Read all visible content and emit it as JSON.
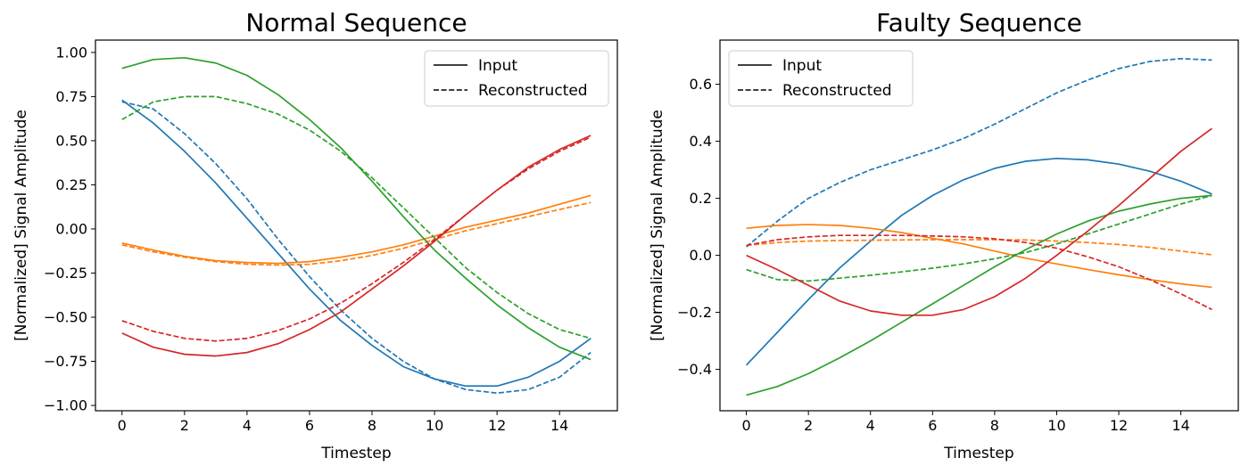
{
  "colors": {
    "blue": "#1f77b4",
    "orange": "#ff7f0e",
    "green": "#2ca02c",
    "red": "#d62728"
  },
  "chart_data": [
    {
      "type": "line",
      "title": "Normal Sequence",
      "xlabel": "Timestep",
      "ylabel": "[Normalized] Signal Amplitude",
      "xlim": [
        -0.85,
        15.85
      ],
      "ylim": [
        -1.03,
        1.07
      ],
      "xticks": [
        0,
        2,
        4,
        6,
        8,
        10,
        12,
        14
      ],
      "yticks": [
        -1.0,
        -0.75,
        -0.5,
        -0.25,
        0.0,
        0.25,
        0.5,
        0.75,
        1.0
      ],
      "ytick_labels": [
        "−1.00",
        "−0.75",
        "−0.50",
        "−0.25",
        "0.00",
        "0.25",
        "0.50",
        "0.75",
        "1.00"
      ],
      "legend": {
        "position": "top-right",
        "entries": [
          "Input",
          "Reconstructed"
        ]
      },
      "grid": false,
      "x": [
        0,
        1,
        2,
        3,
        4,
        5,
        6,
        7,
        8,
        9,
        10,
        11,
        12,
        13,
        14,
        15
      ],
      "series": [
        {
          "color": "blue",
          "style": "solid",
          "values": [
            0.73,
            0.6,
            0.44,
            0.26,
            0.06,
            -0.14,
            -0.34,
            -0.52,
            -0.66,
            -0.78,
            -0.85,
            -0.89,
            -0.89,
            -0.84,
            -0.75,
            -0.62
          ]
        },
        {
          "color": "blue",
          "style": "dashed",
          "values": [
            0.72,
            0.68,
            0.54,
            0.37,
            0.17,
            -0.06,
            -0.27,
            -0.46,
            -0.62,
            -0.75,
            -0.85,
            -0.91,
            -0.93,
            -0.91,
            -0.84,
            -0.7
          ]
        },
        {
          "color": "orange",
          "style": "solid",
          "values": [
            -0.08,
            -0.12,
            -0.155,
            -0.18,
            -0.19,
            -0.195,
            -0.185,
            -0.16,
            -0.13,
            -0.09,
            -0.04,
            0.01,
            0.05,
            0.09,
            0.14,
            0.19
          ]
        },
        {
          "color": "orange",
          "style": "dashed",
          "values": [
            -0.09,
            -0.13,
            -0.16,
            -0.185,
            -0.2,
            -0.205,
            -0.2,
            -0.18,
            -0.15,
            -0.11,
            -0.06,
            -0.01,
            0.03,
            0.07,
            0.11,
            0.15
          ]
        },
        {
          "color": "green",
          "style": "solid",
          "values": [
            0.91,
            0.96,
            0.97,
            0.94,
            0.87,
            0.76,
            0.62,
            0.46,
            0.27,
            0.07,
            -0.12,
            -0.28,
            -0.43,
            -0.56,
            -0.67,
            -0.74
          ]
        },
        {
          "color": "green",
          "style": "dashed",
          "values": [
            0.62,
            0.72,
            0.75,
            0.75,
            0.71,
            0.65,
            0.56,
            0.44,
            0.29,
            0.12,
            -0.05,
            -0.22,
            -0.36,
            -0.48,
            -0.57,
            -0.62
          ]
        },
        {
          "color": "red",
          "style": "solid",
          "values": [
            -0.59,
            -0.67,
            -0.71,
            -0.72,
            -0.7,
            -0.65,
            -0.57,
            -0.47,
            -0.34,
            -0.21,
            -0.07,
            0.08,
            0.22,
            0.35,
            0.45,
            0.53
          ]
        },
        {
          "color": "red",
          "style": "dashed",
          "values": [
            -0.52,
            -0.58,
            -0.62,
            -0.635,
            -0.62,
            -0.575,
            -0.51,
            -0.42,
            -0.31,
            -0.19,
            -0.06,
            0.08,
            0.22,
            0.34,
            0.44,
            0.52
          ]
        }
      ]
    },
    {
      "type": "line",
      "title": "Faulty Sequence",
      "xlabel": "Timestep",
      "ylabel": "[Normalized] Signal Amplitude",
      "xlim": [
        -0.85,
        15.85
      ],
      "ylim": [
        -0.545,
        0.755
      ],
      "xticks": [
        0,
        2,
        4,
        6,
        8,
        10,
        12,
        14
      ],
      "yticks": [
        -0.4,
        -0.2,
        0.0,
        0.2,
        0.4,
        0.6
      ],
      "ytick_labels": [
        "−0.4",
        "−0.2",
        "0.0",
        "0.2",
        "0.4",
        "0.6"
      ],
      "legend": {
        "position": "top-left",
        "entries": [
          "Input",
          "Reconstructed"
        ]
      },
      "grid": false,
      "x": [
        0,
        1,
        2,
        3,
        4,
        5,
        6,
        7,
        8,
        9,
        10,
        11,
        12,
        13,
        14,
        15
      ],
      "series": [
        {
          "color": "blue",
          "style": "solid",
          "values": [
            -0.385,
            -0.27,
            -0.155,
            -0.045,
            0.05,
            0.14,
            0.21,
            0.265,
            0.305,
            0.33,
            0.34,
            0.335,
            0.32,
            0.295,
            0.26,
            0.215
          ]
        },
        {
          "color": "blue",
          "style": "dashed",
          "values": [
            0.03,
            0.12,
            0.2,
            0.255,
            0.3,
            0.335,
            0.37,
            0.41,
            0.46,
            0.515,
            0.57,
            0.615,
            0.655,
            0.68,
            0.69,
            0.685
          ]
        },
        {
          "color": "orange",
          "style": "solid",
          "values": [
            0.095,
            0.105,
            0.108,
            0.105,
            0.095,
            0.08,
            0.06,
            0.04,
            0.015,
            -0.01,
            -0.03,
            -0.05,
            -0.068,
            -0.085,
            -0.1,
            -0.112
          ]
        },
        {
          "color": "orange",
          "style": "dashed",
          "values": [
            0.035,
            0.045,
            0.05,
            0.052,
            0.053,
            0.054,
            0.055,
            0.055,
            0.055,
            0.054,
            0.05,
            0.045,
            0.038,
            0.028,
            0.015,
            0.002
          ]
        },
        {
          "color": "green",
          "style": "solid",
          "values": [
            -0.49,
            -0.46,
            -0.415,
            -0.36,
            -0.3,
            -0.235,
            -0.17,
            -0.105,
            -0.04,
            0.02,
            0.075,
            0.12,
            0.155,
            0.18,
            0.2,
            0.21
          ]
        },
        {
          "color": "green",
          "style": "dashed",
          "values": [
            -0.05,
            -0.085,
            -0.09,
            -0.08,
            -0.07,
            -0.058,
            -0.045,
            -0.03,
            -0.012,
            0.01,
            0.04,
            0.075,
            0.11,
            0.145,
            0.18,
            0.21
          ]
        },
        {
          "color": "red",
          "style": "solid",
          "values": [
            0.0,
            -0.05,
            -0.105,
            -0.16,
            -0.195,
            -0.21,
            -0.21,
            -0.19,
            -0.145,
            -0.08,
            0.0,
            0.085,
            0.175,
            0.27,
            0.365,
            0.445
          ]
        },
        {
          "color": "red",
          "style": "dashed",
          "values": [
            0.035,
            0.055,
            0.065,
            0.07,
            0.07,
            0.07,
            0.068,
            0.065,
            0.058,
            0.045,
            0.025,
            -0.005,
            -0.04,
            -0.085,
            -0.135,
            -0.19
          ]
        }
      ]
    }
  ]
}
